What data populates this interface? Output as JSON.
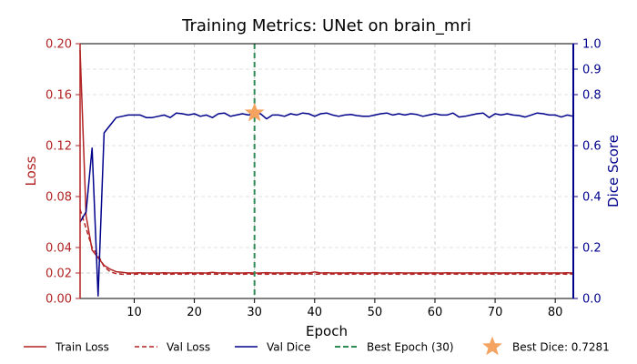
{
  "chart_data": {
    "type": "line",
    "title": "Training Metrics: UNet on brain_mri",
    "xlabel": "Epoch",
    "ylabel_left": "Loss",
    "ylabel_right": "Dice Score",
    "xlim": [
      1,
      83
    ],
    "ylim_left": [
      0,
      0.2
    ],
    "ylim_right": [
      0,
      1.0
    ],
    "x_ticks": [
      10,
      20,
      30,
      40,
      50,
      60,
      70,
      80
    ],
    "y_left_ticks": [
      0.0,
      0.02,
      0.04,
      0.08,
      0.12,
      0.16,
      0.2
    ],
    "y_left_tick_labels": [
      "0.00",
      "0.02",
      "0.04",
      "0.08",
      "0.12",
      "0.16",
      "0.20"
    ],
    "y_right_ticks": [
      0.0,
      0.2,
      0.4,
      0.6,
      0.8,
      0.9,
      1.0
    ],
    "y_right_tick_labels": [
      "0.0",
      "0.2",
      "0.4",
      "0.6",
      "0.8",
      "0.9",
      "1.0"
    ],
    "grid": true,
    "colors": {
      "train_loss": "#b22222",
      "val_loss": "#b22222",
      "val_dice": "#00008b",
      "best_epoch": "#2e8b57",
      "best_dice": "#f4a460",
      "left_axis": "#b22222",
      "right_axis": "#00008b"
    },
    "epochs": [
      1,
      2,
      3,
      4,
      5,
      6,
      7,
      8,
      9,
      10,
      11,
      12,
      13,
      14,
      15,
      16,
      17,
      18,
      19,
      20,
      21,
      22,
      23,
      24,
      25,
      26,
      27,
      28,
      29,
      30,
      31,
      32,
      33,
      34,
      35,
      36,
      37,
      38,
      39,
      40,
      41,
      42,
      43,
      44,
      45,
      46,
      47,
      48,
      49,
      50,
      51,
      52,
      53,
      54,
      55,
      56,
      57,
      58,
      59,
      60,
      61,
      62,
      63,
      64,
      65,
      66,
      67,
      68,
      69,
      70,
      71,
      72,
      73,
      74,
      75,
      76,
      77,
      78,
      79,
      80,
      81,
      82,
      83
    ],
    "series": [
      {
        "name": "Train Loss",
        "style": "solid",
        "axis": "left",
        "values": [
          0.195,
          0.065,
          0.038,
          0.032,
          0.026,
          0.023,
          0.021,
          0.0205,
          0.02,
          0.02,
          0.0202,
          0.02,
          0.0201,
          0.02,
          0.0202,
          0.02,
          0.0201,
          0.02,
          0.0202,
          0.02,
          0.0201,
          0.02,
          0.0205,
          0.02,
          0.0202,
          0.02,
          0.0201,
          0.02,
          0.0202,
          0.02,
          0.0201,
          0.0203,
          0.02,
          0.0201,
          0.02,
          0.0202,
          0.02,
          0.0201,
          0.02,
          0.0208,
          0.02,
          0.0202,
          0.02,
          0.0201,
          0.02,
          0.0202,
          0.02,
          0.0201,
          0.02,
          0.0202,
          0.02,
          0.0201,
          0.02,
          0.0202,
          0.02,
          0.0201,
          0.02,
          0.0202,
          0.02,
          0.0201,
          0.02,
          0.0202,
          0.02,
          0.0201,
          0.02,
          0.0202,
          0.02,
          0.0201,
          0.02,
          0.0202,
          0.02,
          0.0201,
          0.02,
          0.0202,
          0.02,
          0.0201,
          0.02,
          0.0202,
          0.02,
          0.0201,
          0.02,
          0.0202,
          0.02
        ]
      },
      {
        "name": "Val Loss",
        "style": "dashed",
        "axis": "left",
        "values": [
          0.07,
          0.055,
          0.04,
          0.034,
          0.025,
          0.021,
          0.0195,
          0.019,
          0.0192,
          0.019,
          0.0193,
          0.019,
          0.0192,
          0.019,
          0.0193,
          0.019,
          0.0192,
          0.019,
          0.0193,
          0.019,
          0.0192,
          0.019,
          0.0193,
          0.019,
          0.0192,
          0.019,
          0.0193,
          0.019,
          0.0192,
          0.019,
          0.0193,
          0.019,
          0.0192,
          0.019,
          0.0193,
          0.019,
          0.0192,
          0.019,
          0.0193,
          0.019,
          0.0192,
          0.019,
          0.0193,
          0.019,
          0.0192,
          0.019,
          0.0193,
          0.019,
          0.0192,
          0.019,
          0.0193,
          0.019,
          0.0192,
          0.019,
          0.0193,
          0.019,
          0.0192,
          0.019,
          0.0193,
          0.019,
          0.0192,
          0.019,
          0.0193,
          0.019,
          0.0192,
          0.019,
          0.0193,
          0.019,
          0.0192,
          0.019,
          0.0193,
          0.019,
          0.0192,
          0.019,
          0.0193,
          0.019,
          0.0192,
          0.019,
          0.0193,
          0.019,
          0.0192,
          0.019,
          0.0193
        ]
      },
      {
        "name": "Val Dice",
        "style": "solid",
        "axis": "right",
        "values": [
          0.3,
          0.34,
          0.59,
          0.01,
          0.65,
          0.68,
          0.71,
          0.715,
          0.72,
          0.72,
          0.72,
          0.71,
          0.71,
          0.715,
          0.72,
          0.71,
          0.728,
          0.725,
          0.72,
          0.725,
          0.715,
          0.72,
          0.71,
          0.725,
          0.728,
          0.715,
          0.72,
          0.725,
          0.72,
          0.7281,
          0.725,
          0.705,
          0.72,
          0.72,
          0.715,
          0.725,
          0.72,
          0.728,
          0.725,
          0.715,
          0.725,
          0.728,
          0.72,
          0.715,
          0.72,
          0.722,
          0.718,
          0.715,
          0.715,
          0.72,
          0.725,
          0.728,
          0.72,
          0.725,
          0.72,
          0.725,
          0.722,
          0.715,
          0.72,
          0.725,
          0.72,
          0.72,
          0.728,
          0.712,
          0.715,
          0.72,
          0.725,
          0.728,
          0.71,
          0.725,
          0.72,
          0.725,
          0.72,
          0.718,
          0.712,
          0.72,
          0.728,
          0.725,
          0.72,
          0.72,
          0.712,
          0.72,
          0.715
        ]
      }
    ],
    "best_epoch": 30,
    "best_dice": 0.7281,
    "legend": {
      "position": "bottom",
      "entries": [
        {
          "label": "Train Loss",
          "kind": "solid",
          "color": "#b22222"
        },
        {
          "label": "Val Loss",
          "kind": "dashed",
          "color": "#b22222"
        },
        {
          "label": "Val Dice",
          "kind": "solid",
          "color": "#00008b"
        },
        {
          "label": "Best Epoch (30)",
          "kind": "dashed",
          "color": "#2e8b57"
        },
        {
          "label": "Best Dice: 0.7281",
          "kind": "star",
          "color": "#f4a460"
        }
      ]
    }
  }
}
